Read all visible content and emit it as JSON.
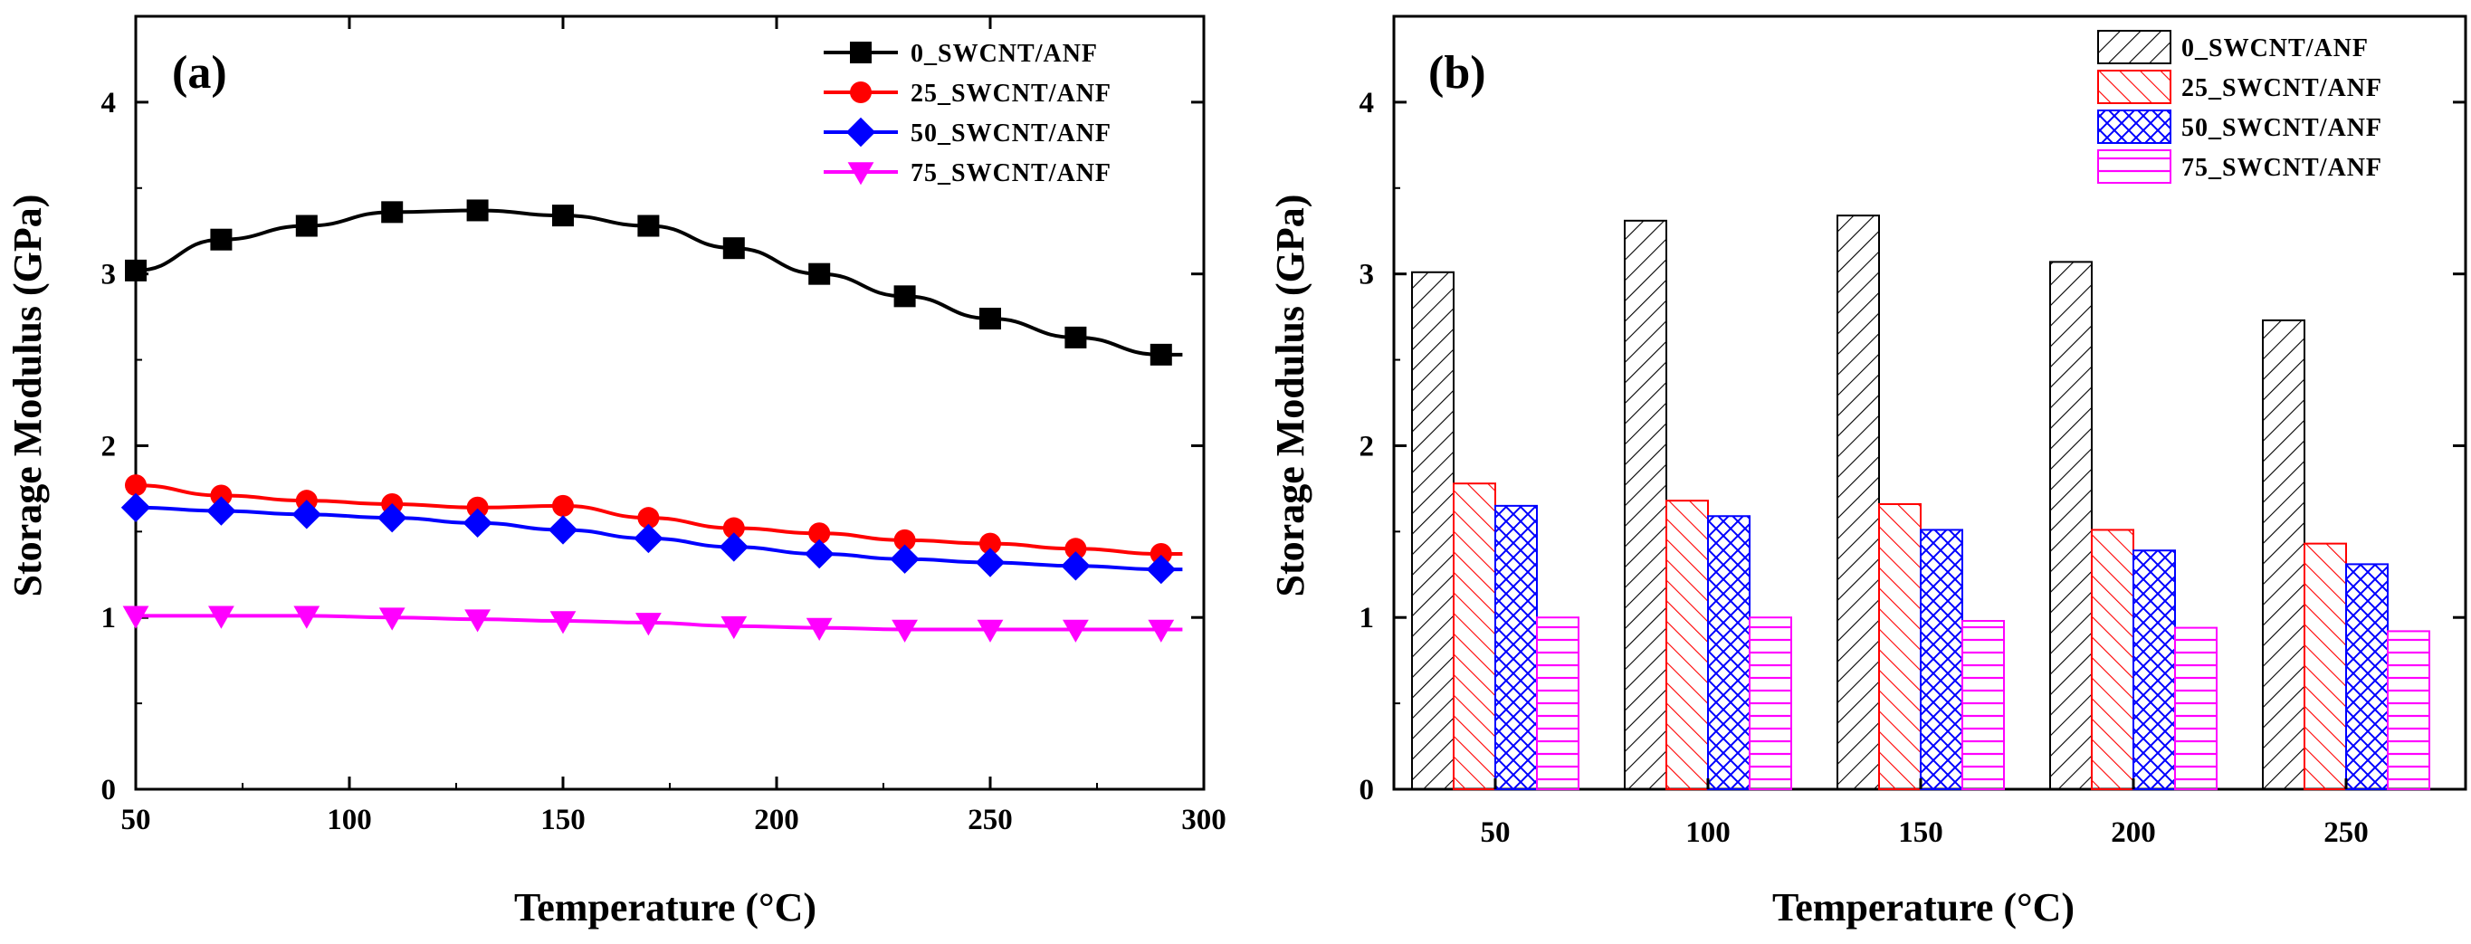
{
  "chart_data": [
    {
      "type": "line",
      "panel_label": "(a)",
      "xlabel": "Temperature (°C)",
      "ylabel": "Storage Modulus (GPa)",
      "xlim": [
        50,
        300
      ],
      "ylim": [
        0,
        4.5
      ],
      "xticks": [
        50,
        100,
        150,
        200,
        250,
        300
      ],
      "yticks": [
        0,
        1,
        2,
        3,
        4
      ],
      "legend_position": "top-right",
      "series": [
        {
          "name": "0_SWCNT/ANF",
          "color": "#000000",
          "marker": "square",
          "x": [
            50,
            70,
            90,
            110,
            130,
            150,
            170,
            190,
            210,
            230,
            250,
            270,
            290
          ],
          "values": [
            3.02,
            3.2,
            3.28,
            3.36,
            3.37,
            3.34,
            3.28,
            3.15,
            3.0,
            2.87,
            2.74,
            2.63,
            2.53
          ]
        },
        {
          "name": "25_SWCNT/ANF",
          "color": "#ff0000",
          "marker": "circle",
          "x": [
            50,
            70,
            90,
            110,
            130,
            150,
            170,
            190,
            210,
            230,
            250,
            270,
            290
          ],
          "values": [
            1.77,
            1.71,
            1.68,
            1.66,
            1.64,
            1.65,
            1.58,
            1.52,
            1.49,
            1.45,
            1.43,
            1.4,
            1.37
          ]
        },
        {
          "name": "50_SWCNT/ANF",
          "color": "#0000ff",
          "marker": "diamond",
          "x": [
            50,
            70,
            90,
            110,
            130,
            150,
            170,
            190,
            210,
            230,
            250,
            270,
            290
          ],
          "values": [
            1.64,
            1.62,
            1.6,
            1.58,
            1.55,
            1.51,
            1.46,
            1.41,
            1.37,
            1.34,
            1.32,
            1.3,
            1.28
          ]
        },
        {
          "name": "75_SWCNT/ANF",
          "color": "#ff00ff",
          "marker": "triangle-down",
          "x": [
            50,
            70,
            90,
            110,
            130,
            150,
            170,
            190,
            210,
            230,
            250,
            270,
            290
          ],
          "values": [
            1.01,
            1.01,
            1.01,
            1.0,
            0.99,
            0.98,
            0.97,
            0.95,
            0.94,
            0.93,
            0.93,
            0.93,
            0.93
          ]
        }
      ]
    },
    {
      "type": "bar",
      "panel_label": "(b)",
      "xlabel": "Temperature (°C)",
      "ylabel": "Storage Modulus (GPa)",
      "ylim": [
        0,
        4.5
      ],
      "yticks": [
        0,
        1,
        2,
        3,
        4
      ],
      "categories": [
        "50",
        "100",
        "150",
        "200",
        "250"
      ],
      "legend_position": "top-right",
      "series": [
        {
          "name": "0_SWCNT/ANF",
          "color": "#000000",
          "pattern": "diagonal-right",
          "values": [
            3.01,
            3.31,
            3.34,
            3.07,
            2.73
          ]
        },
        {
          "name": "25_SWCNT/ANF",
          "color": "#ff0000",
          "pattern": "diagonal-left",
          "values": [
            1.78,
            1.68,
            1.66,
            1.51,
            1.43
          ]
        },
        {
          "name": "50_SWCNT/ANF",
          "color": "#0000ff",
          "pattern": "crosshatch",
          "values": [
            1.65,
            1.59,
            1.51,
            1.39,
            1.31
          ]
        },
        {
          "name": "75_SWCNT/ANF",
          "color": "#ff00ff",
          "pattern": "horizontal",
          "values": [
            1.0,
            1.0,
            0.98,
            0.94,
            0.92
          ]
        }
      ]
    }
  ]
}
